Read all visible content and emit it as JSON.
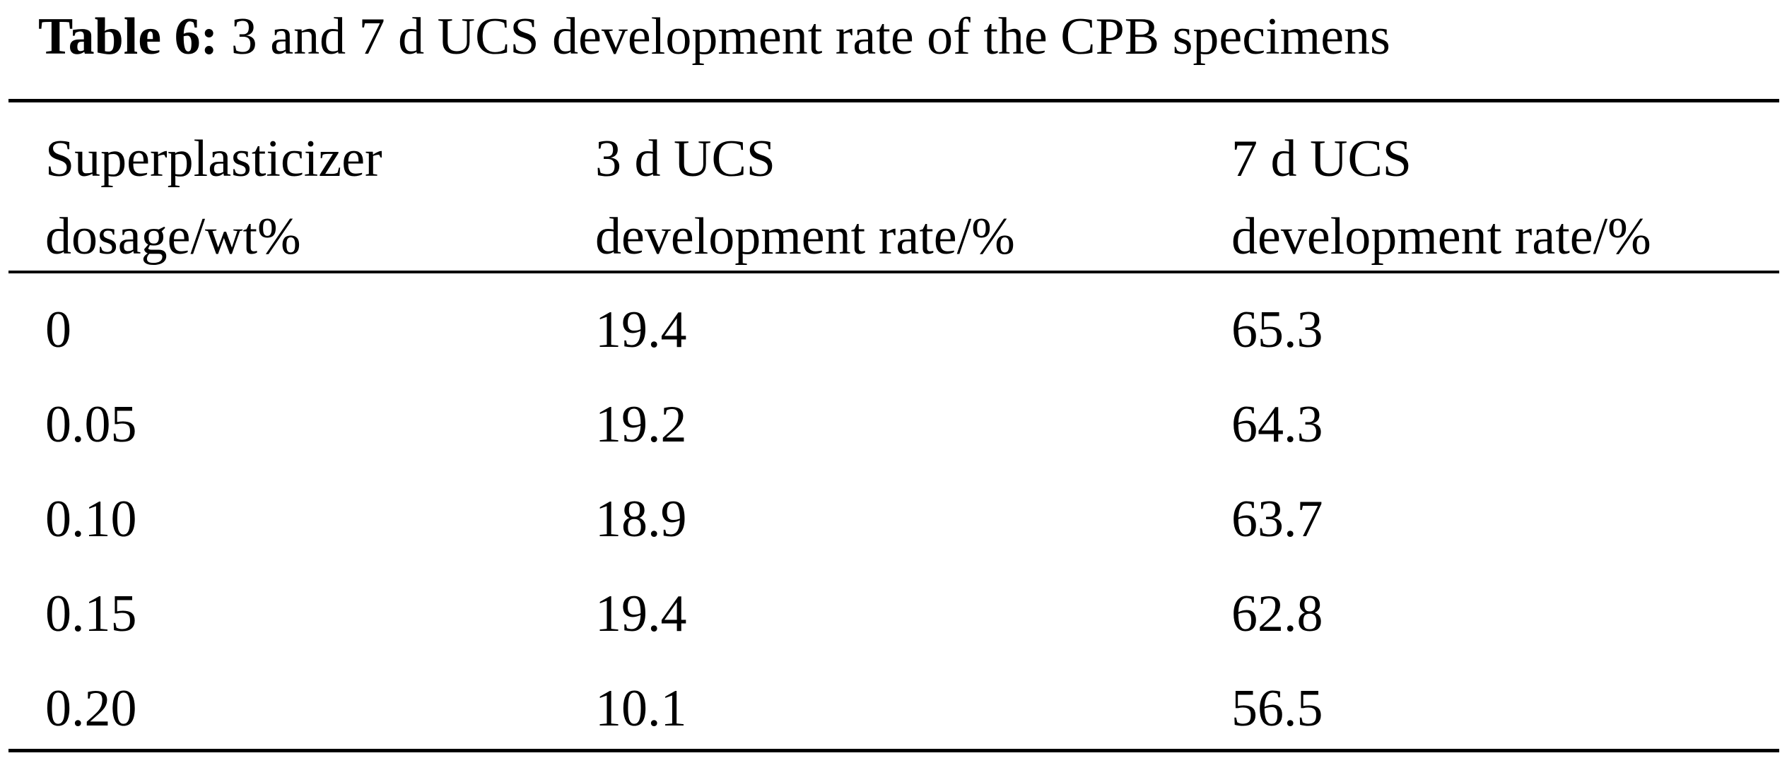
{
  "caption": {
    "label": "Table 6:",
    "text": "3 and 7 d UCS development rate of the CPB specimens"
  },
  "table": {
    "headers": [
      {
        "line1": "Superplasticizer",
        "line2": "dosage/wt%"
      },
      {
        "line1": "3 d UCS",
        "line2": "development rate/%"
      },
      {
        "line1": "7 d UCS",
        "line2": "development rate/%"
      }
    ],
    "rows": [
      {
        "dosage": "0",
        "ucs_3d": "19.4",
        "ucs_7d": "65.3"
      },
      {
        "dosage": "0.05",
        "ucs_3d": "19.2",
        "ucs_7d": "64.3"
      },
      {
        "dosage": "0.10",
        "ucs_3d": "18.9",
        "ucs_7d": "63.7"
      },
      {
        "dosage": "0.15",
        "ucs_3d": "19.4",
        "ucs_7d": "62.8"
      },
      {
        "dosage": "0.20",
        "ucs_3d": "10.1",
        "ucs_7d": "56.5"
      }
    ]
  }
}
